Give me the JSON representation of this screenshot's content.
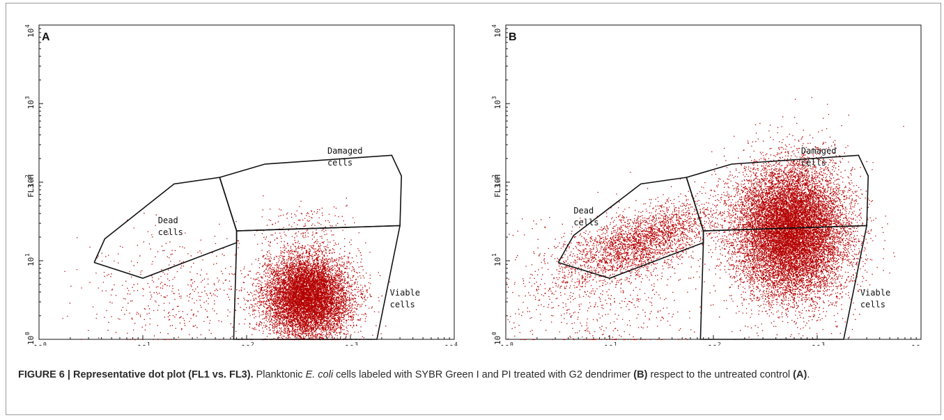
{
  "figure": {
    "caption_label": "FIGURE 6 | Representative dot plot (FL1 vs. FL3).",
    "caption_text_1": " Planktonic ",
    "caption_italic": "E. coli",
    "caption_text_2": " cells labeled with SYBR Green I and PI treated with G2 dendrimer ",
    "caption_ref_b": "(B)",
    "caption_text_3": " respect to the untreated control ",
    "caption_ref_a": "(A)",
    "caption_text_4": "."
  },
  "colors": {
    "dots": "#b50000",
    "lines": "#111111",
    "frame": "#9a9a9a"
  },
  "chart_data": [
    {
      "panel_label": "A",
      "type": "scatter",
      "x_scale": "log",
      "y_scale": "log",
      "xlim": [
        1,
        10000
      ],
      "ylim": [
        1,
        10000
      ],
      "x_tick_labels": [
        "10",
        "10",
        "10",
        "10",
        "10"
      ],
      "x_tick_exponents": [
        "0",
        "1",
        "2",
        "3",
        "4"
      ],
      "y_tick_labels": [
        "10",
        "10",
        "10",
        "10",
        "10"
      ],
      "y_tick_exponents": [
        "0",
        "1",
        "2",
        "3",
        "4"
      ],
      "ylabel": "FL3-H",
      "gates": [
        {
          "label_line1": "Dead",
          "label_line2": "cells",
          "label_pos": [
            14,
            30
          ],
          "polygon": [
            [
              3.4,
              9.5
            ],
            [
              4.3,
              19
            ],
            [
              20,
              95
            ],
            [
              55,
              115
            ],
            [
              80,
              24
            ],
            [
              80,
              17
            ],
            [
              10,
              6
            ],
            [
              3.4,
              9.5
            ]
          ]
        },
        {
          "label_line1": "Damaged",
          "label_line2": "cells",
          "label_pos": [
            600,
            230
          ],
          "polygon": [
            [
              55,
              115
            ],
            [
              150,
              170
            ],
            [
              2500,
              220
            ],
            [
              3100,
              120
            ],
            [
              3000,
              28
            ],
            [
              80,
              24
            ],
            [
              55,
              115
            ]
          ]
        },
        {
          "label_line1": "Viable",
          "label_line2": "cells",
          "label_pos": [
            2400,
            3.6
          ],
          "polygon": [
            [
              80,
              24
            ],
            [
              3000,
              28
            ],
            [
              1800,
              1
            ],
            [
              75,
              1
            ],
            [
              80,
              17
            ],
            [
              80,
              24
            ]
          ]
        }
      ],
      "populations": [
        {
          "name": "main cluster",
          "center": [
            380,
            3.5
          ],
          "spread_log": [
            0.21,
            0.27
          ],
          "count": 9000
        },
        {
          "name": "dead scatter",
          "center": [
            20,
            4
          ],
          "spread_log": [
            0.45,
            0.35
          ],
          "count": 450
        },
        {
          "name": "damaged scatter",
          "center": [
            400,
            30
          ],
          "spread_log": [
            0.25,
            0.15
          ],
          "count": 150
        }
      ]
    },
    {
      "panel_label": "B",
      "type": "scatter",
      "x_scale": "log",
      "y_scale": "log",
      "xlim": [
        1,
        10000
      ],
      "ylim": [
        1,
        10000
      ],
      "x_tick_labels": [
        "10",
        "10",
        "10",
        "10",
        "10"
      ],
      "x_tick_exponents": [
        "0",
        "1",
        "2",
        "3",
        ""
      ],
      "y_tick_labels": [
        "10",
        "10",
        "10",
        "10",
        "10"
      ],
      "y_tick_exponents": [
        "0",
        "1",
        "2",
        "3",
        "4"
      ],
      "ylabel": "FL3-H",
      "gates": [
        {
          "label_line1": "Dead",
          "label_line2": "cells",
          "label_pos": [
            4.5,
            40
          ],
          "polygon": [
            [
              3.2,
              9.5
            ],
            [
              4.5,
              21
            ],
            [
              20,
              95
            ],
            [
              55,
              115
            ],
            [
              80,
              24
            ],
            [
              80,
              17
            ],
            [
              10,
              6
            ],
            [
              3.2,
              9.5
            ]
          ]
        },
        {
          "label_line1": "Damaged",
          "label_line2": "cells",
          "label_pos": [
            700,
            230
          ],
          "polygon": [
            [
              55,
              115
            ],
            [
              150,
              170
            ],
            [
              2500,
              220
            ],
            [
              3100,
              120
            ],
            [
              3000,
              28
            ],
            [
              80,
              24
            ],
            [
              55,
              115
            ]
          ]
        },
        {
          "label_line1": "Viable",
          "label_line2": "cells",
          "label_pos": [
            2600,
            3.6
          ],
          "polygon": [
            [
              80,
              24
            ],
            [
              3000,
              28
            ],
            [
              1800,
              1
            ],
            [
              75,
              1
            ],
            [
              80,
              17
            ],
            [
              80,
              24
            ]
          ]
        }
      ],
      "populations": [
        {
          "name": "main cluster",
          "center": [
            550,
            24
          ],
          "spread_log": [
            0.27,
            0.42
          ],
          "count": 14000
        },
        {
          "name": "diagonal streak",
          "center": [
            20,
            18
          ],
          "spread_log": [
            0.36,
            0.19
          ],
          "count": 2600
        },
        {
          "name": "low scatter",
          "center": [
            7,
            4
          ],
          "spread_log": [
            0.5,
            0.45
          ],
          "count": 700
        }
      ]
    }
  ]
}
